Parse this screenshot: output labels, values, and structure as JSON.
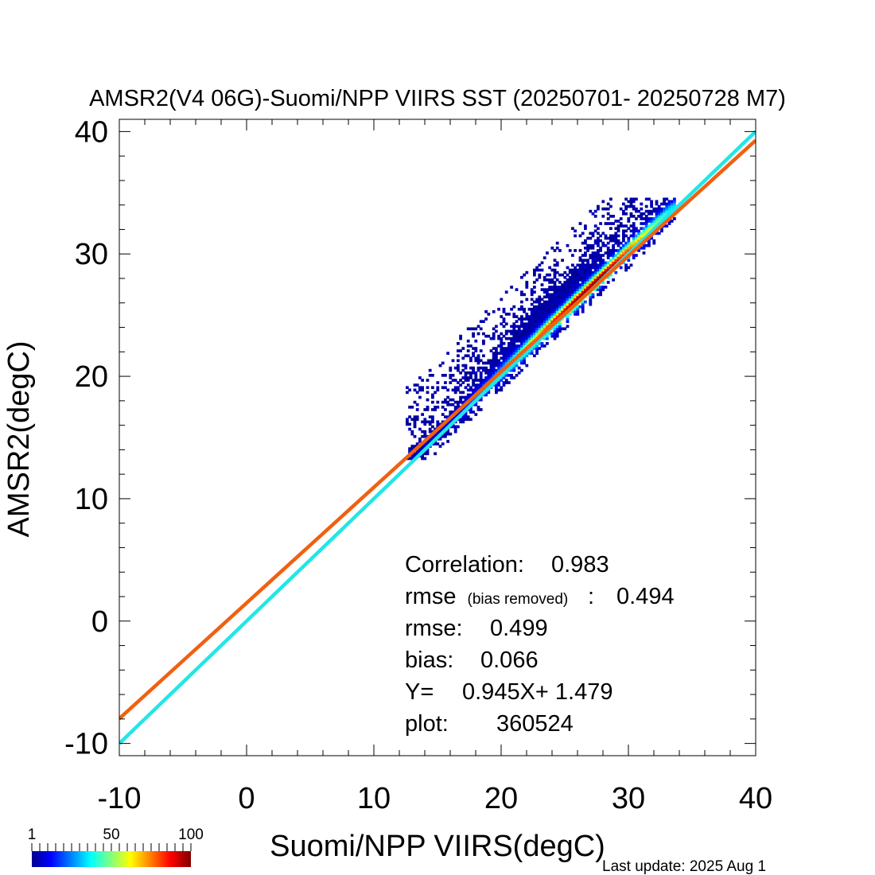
{
  "chart_data": {
    "type": "heatmap",
    "title": "AMSR2(V4 06G)-Suomi/NPP VIIRS SST (20250701- 20250728 M7)",
    "xlabel": "Suomi/NPP VIIRS(degC)",
    "ylabel": "AMSR2(degC)",
    "xlim": [
      -10,
      40
    ],
    "ylim": [
      -11,
      41
    ],
    "x_ticks": [
      -10,
      0,
      10,
      20,
      30,
      40
    ],
    "y_ticks": [
      -10,
      0,
      10,
      20,
      30,
      40
    ],
    "x_tick_labels": [
      "-10",
      "0",
      "10",
      "20",
      "30",
      "40"
    ],
    "y_tick_labels": [
      "-10",
      "0",
      "10",
      "20",
      "30",
      "40"
    ],
    "lines": [
      {
        "role": "one-to-one",
        "slope": 1.0,
        "intercept": 0.0,
        "color": "#22e6e6"
      },
      {
        "role": "regression",
        "slope": 0.945,
        "intercept": 1.479,
        "color": "#f06010"
      }
    ],
    "density_cloud": {
      "x_range": [
        12.5,
        33.5
      ],
      "y_range": [
        13.2,
        34.5
      ],
      "peak": [
        26.5,
        26.5
      ]
    },
    "statistics": {
      "correlation_label": "Correlation:",
      "correlation_value": "0.983",
      "rmse_br_label": "rmse",
      "rmse_br_note": "(bias removed)",
      "rmse_br_sep": ":",
      "rmse_br_value": "0.494",
      "rmse_label": "rmse:",
      "rmse_value": "0.499",
      "bias_label": "bias:",
      "bias_value": "0.066",
      "fit_label": "Y=",
      "fit_value": "0.945X+  1.479",
      "plot_label": "plot:",
      "plot_value": "360524"
    },
    "colorbar": {
      "labels": [
        "1",
        "50",
        "100"
      ],
      "colors": [
        "#00008f",
        "#0000ff",
        "#00ffff",
        "#ffff00",
        "#ff0000",
        "#800000"
      ]
    },
    "last_update": "Last update: 2025 Aug  1"
  }
}
